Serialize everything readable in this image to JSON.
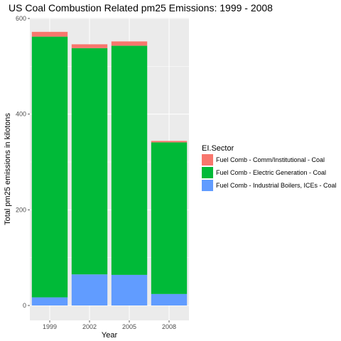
{
  "chart_data": {
    "type": "bar",
    "stacked": true,
    "title": "US Coal Combustion Related pm25 Emissions: 1999 - 2008",
    "xlabel": "Year",
    "ylabel": "Total pm25 emissions in kilotons",
    "categories": [
      "1999",
      "2002",
      "2005",
      "2008"
    ],
    "ylim": [
      0,
      600
    ],
    "yticks": [
      0,
      200,
      400,
      600
    ],
    "grid": true,
    "legend_title": "EI.Sector",
    "legend_position": "right",
    "series": [
      {
        "name": "Fuel Comb - Industrial Boilers, ICEs - Coal",
        "color": "#619CFF",
        "values": [
          17,
          65,
          64,
          24
        ]
      },
      {
        "name": "Fuel Comb - Electric Generation - Coal",
        "color": "#00BA38",
        "values": [
          545,
          473,
          479,
          317
        ]
      },
      {
        "name": "Fuel Comb - Comm/Institutional - Coal",
        "color": "#F8766D",
        "values": [
          10,
          8,
          9,
          3
        ]
      }
    ],
    "legend_order": [
      "Fuel Comb - Comm/Institutional - Coal",
      "Fuel Comb - Electric Generation - Coal",
      "Fuel Comb - Industrial Boilers, ICEs - Coal"
    ],
    "panel_color": "#EBEBEB",
    "grid_color": "#FFFFFF"
  }
}
